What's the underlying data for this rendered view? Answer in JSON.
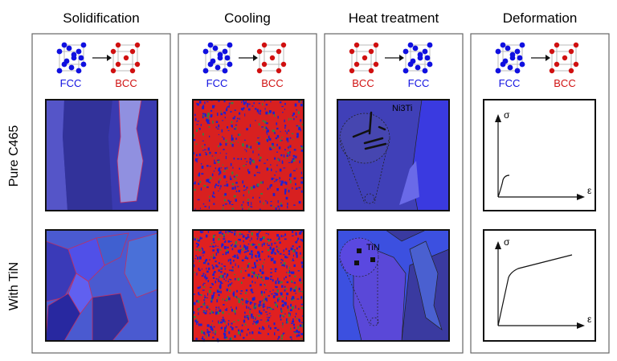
{
  "columns": [
    {
      "title": "Solidification",
      "from": "FCC",
      "to": "BCC"
    },
    {
      "title": "Cooling",
      "from": "FCC",
      "to": "BCC"
    },
    {
      "title": "Heat treatment",
      "from": "BCC",
      "to": "FCC"
    },
    {
      "title": "Deformation",
      "from": "FCC",
      "to": "BCC"
    }
  ],
  "rows": [
    {
      "label": "Pure C465"
    },
    {
      "label": "With TiN"
    }
  ],
  "annotations": {
    "precipitate_pure": "Ni3Ti",
    "precipitate_tin": "TiN",
    "stress": "σ",
    "strain": "ε"
  },
  "colors": {
    "fcc": "#1010e0",
    "bcc": "#d01010",
    "grain_dark": "#3a3aa8",
    "grain_light": "#8080e0"
  }
}
